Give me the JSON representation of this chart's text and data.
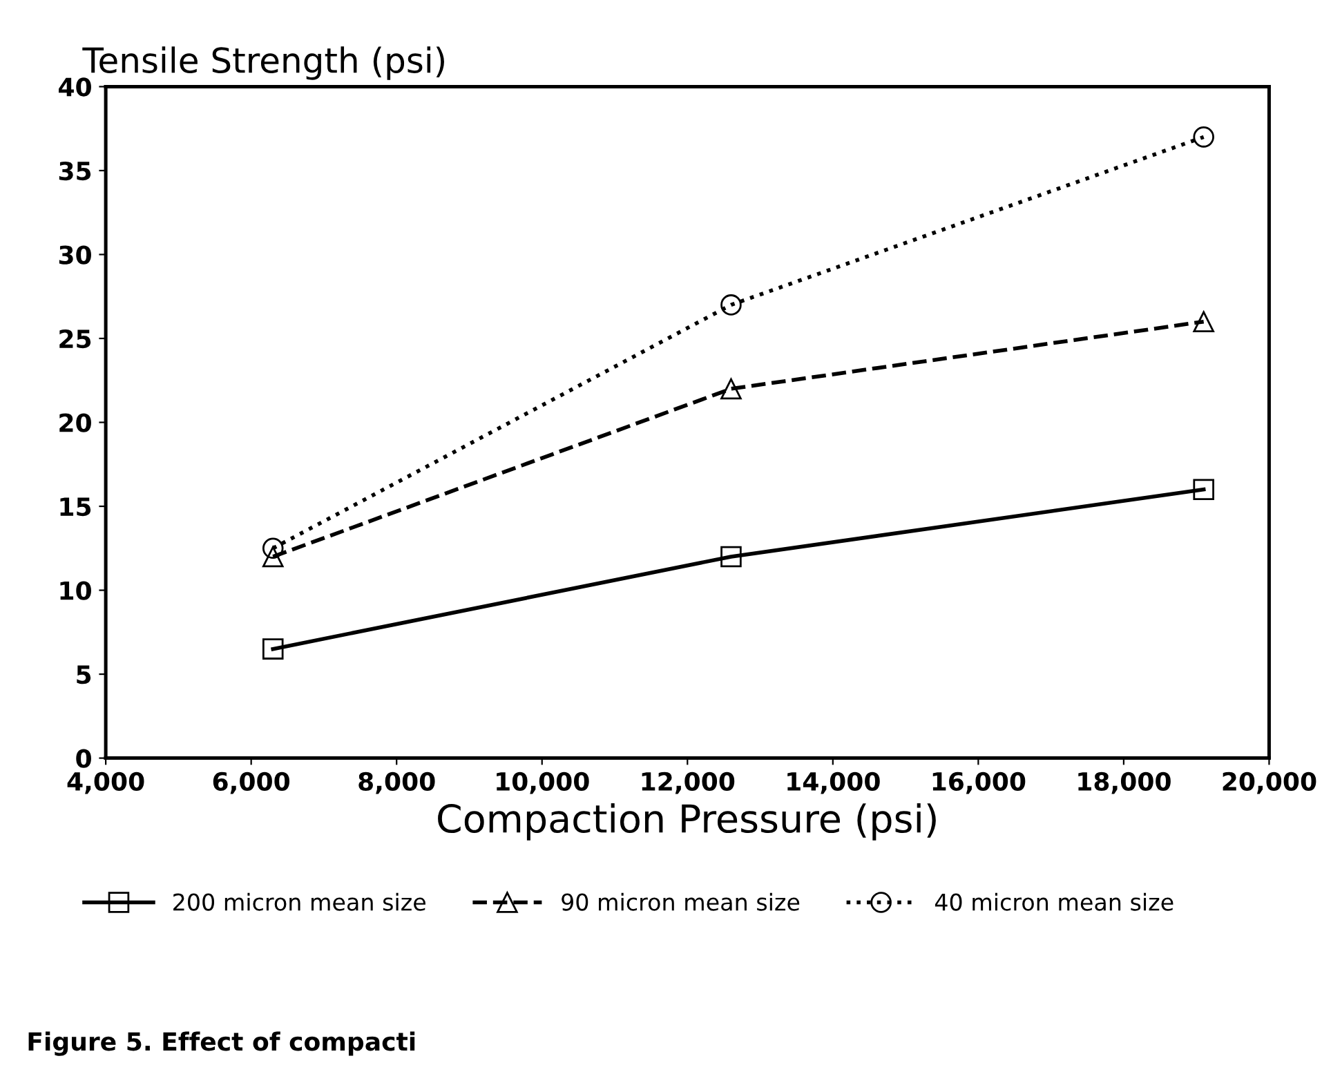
{
  "chart_data": {
    "type": "line",
    "ylabel": "Tensile Strength (psi)",
    "xlabel": "Compaction Pressure (psi)",
    "x": [
      6300,
      12600,
      19100
    ],
    "series": [
      {
        "name": "200 micron mean size",
        "color": "#000000",
        "marker": "square",
        "line_style": "solid",
        "values": [
          6.5,
          12,
          16
        ]
      },
      {
        "name": "90 micron mean size",
        "color": "#000000",
        "marker": "triangle",
        "line_style": "dashed",
        "values": [
          12,
          22,
          26
        ]
      },
      {
        "name": "40 micron mean size",
        "color": "#000000",
        "marker": "circle",
        "line_style": "dotted",
        "values": [
          12.5,
          27,
          37
        ]
      }
    ],
    "xlim": [
      4000,
      20000
    ],
    "xticks": [
      {
        "value": 4000,
        "label": "4,000"
      },
      {
        "value": 6000,
        "label": "6,000"
      },
      {
        "value": 8000,
        "label": "8,000"
      },
      {
        "value": 10000,
        "label": "10,000"
      },
      {
        "value": 12000,
        "label": "12,000"
      },
      {
        "value": 14000,
        "label": "14,000"
      },
      {
        "value": 16000,
        "label": "16,000"
      },
      {
        "value": 18000,
        "label": "18,000"
      },
      {
        "value": 20000,
        "label": "20,000"
      }
    ],
    "ylim": [
      0,
      40
    ],
    "yticks": [
      0,
      5,
      10,
      15,
      20,
      25,
      30,
      35,
      40
    ],
    "grid": false,
    "legend": "bottom",
    "annotations": [
      "Figure 5. Effect of compacti"
    ]
  }
}
